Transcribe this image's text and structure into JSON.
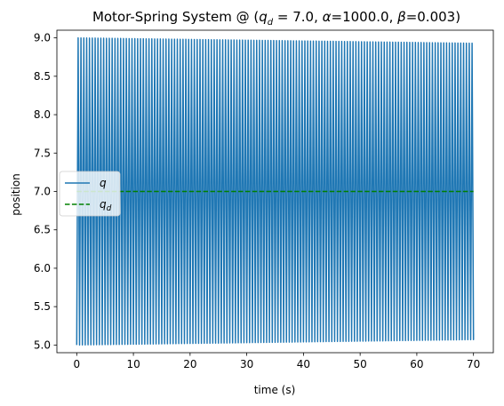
{
  "chart_data": {
    "type": "line",
    "title_prefix": "Motor-Spring System @ (",
    "title_qd_var": "q",
    "title_qd_sub": "d",
    "title_qd_rest": " = 7.0, ",
    "title_alpha_sym": "α",
    "title_alpha_rest": "=1000.0, ",
    "title_beta_sym": "β",
    "title_beta_rest": "=0.003)",
    "xlabel": "time (s)",
    "ylabel": "position",
    "xlim": [
      -3.5,
      73.5
    ],
    "ylim": [
      4.9,
      9.1
    ],
    "xticks": [
      0,
      10,
      20,
      30,
      40,
      50,
      60,
      70
    ],
    "xtick_labels": [
      "0",
      "10",
      "20",
      "30",
      "40",
      "50",
      "60",
      "70"
    ],
    "yticks": [
      5.0,
      5.5,
      6.0,
      6.5,
      7.0,
      7.5,
      8.0,
      8.5,
      9.0
    ],
    "ytick_labels": [
      "5.0",
      "5.5",
      "6.0",
      "6.5",
      "7.0",
      "7.5",
      "8.0",
      "8.5",
      "9.0"
    ],
    "grid": false,
    "legend_position": "center-left",
    "series": [
      {
        "name": "q",
        "name_sub": "",
        "color": "#1f77b4",
        "style": "solid",
        "description": "fast oscillation between ~5.0 and ~9.0, amplitude slowly decaying",
        "t_start": 0,
        "t_end": 70,
        "period": 0.5,
        "center": 7.0,
        "amp_start": 2.0,
        "amp_end": 1.93,
        "end_value": 5.15
      },
      {
        "name": "q",
        "name_sub": "d",
        "color": "#008000",
        "style": "dashed",
        "x": [
          0,
          70
        ],
        "y": [
          7.0,
          7.0
        ]
      }
    ]
  }
}
